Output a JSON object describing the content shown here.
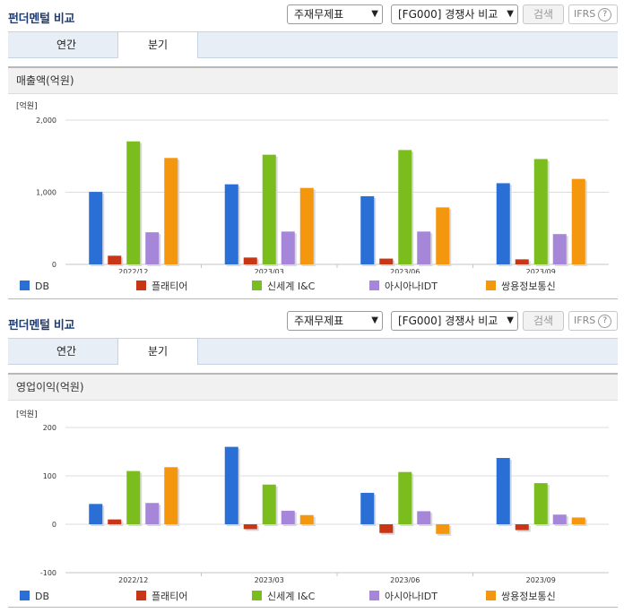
{
  "colors": [
    "#2a6fd6",
    "#c93616",
    "#7bbd1c",
    "#a586d8",
    "#f5960f"
  ],
  "panels": [
    {
      "header": {
        "title": "펀더멘털 비교",
        "report_select": "주재무제표",
        "peer_select": "[FG000] 경쟁사 비교",
        "search_label": "검색",
        "ifrs_label": "IFRS",
        "help": "?"
      },
      "tabs": [
        {
          "label": "연간"
        },
        {
          "label": "분기"
        }
      ],
      "active_tab": "분기",
      "chart_title": "매출액(억원)",
      "chart_data": {
        "type": "bar",
        "unit_label": "[억원]",
        "categories": [
          "2022/12",
          "2023/03",
          "2023/06",
          "2023/09"
        ],
        "yticks": [
          "2,000",
          "1,000",
          "0"
        ],
        "ytick_values": [
          2000,
          1000,
          0
        ],
        "ylim": [
          0,
          2000
        ],
        "series": [
          {
            "name": "DB",
            "values": [
              1005,
              1110,
              945,
              1125
            ]
          },
          {
            "name": "플래티어",
            "values": [
              120,
              95,
              80,
              70
            ]
          },
          {
            "name": "신세계 I&C",
            "values": [
              1705,
              1520,
              1585,
              1460
            ]
          },
          {
            "name": "아시아나IDT",
            "values": [
              445,
              455,
              455,
              420
            ]
          },
          {
            "name": "쌍용정보통신",
            "values": [
              1475,
              1060,
              790,
              1185
            ]
          }
        ]
      }
    },
    {
      "header": {
        "title": "펀더멘털 비교",
        "report_select": "주재무제표",
        "peer_select": "[FG000] 경쟁사 비교",
        "search_label": "검색",
        "ifrs_label": "IFRS",
        "help": "?"
      },
      "tabs": [
        {
          "label": "연간"
        },
        {
          "label": "분기"
        }
      ],
      "active_tab": "분기",
      "chart_title": "영업이익(억원)",
      "chart_data": {
        "type": "bar",
        "unit_label": "[억원]",
        "categories": [
          "2022/12",
          "2023/03",
          "2023/06",
          "2023/09"
        ],
        "yticks": [
          "200",
          "100",
          "0",
          "-100"
        ],
        "ytick_values": [
          200,
          100,
          0,
          -100
        ],
        "ylim": [
          -100,
          200
        ],
        "series": [
          {
            "name": "DB",
            "values": [
              42,
              160,
              65,
              137
            ]
          },
          {
            "name": "플래티어",
            "values": [
              10,
              -10,
              -18,
              -12
            ]
          },
          {
            "name": "신세계 I&C",
            "values": [
              110,
              82,
              108,
              85
            ]
          },
          {
            "name": "아시아나IDT",
            "values": [
              44,
              28,
              27,
              20
            ]
          },
          {
            "name": "쌍용정보통신",
            "values": [
              118,
              19,
              -20,
              14
            ]
          }
        ]
      }
    }
  ]
}
